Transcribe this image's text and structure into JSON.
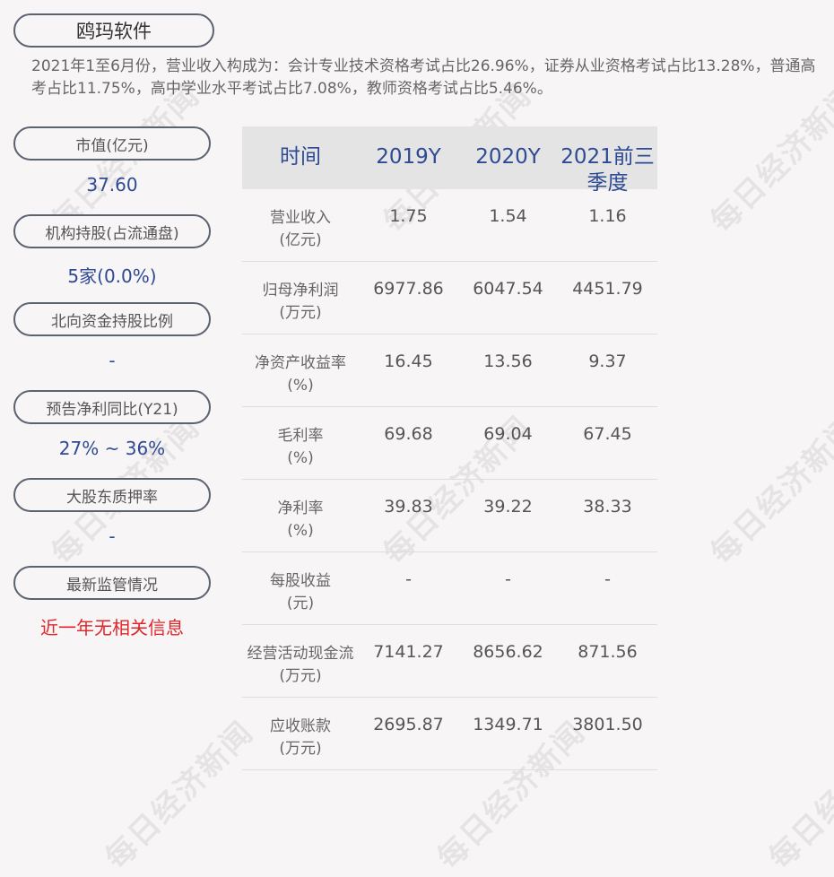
{
  "title": "鸥玛软件",
  "summary": "2021年1至6月份，营业收入构成为：会计专业技术资格考试占比26.96%，证券从业资格考试占比13.28%，普通高考占比11.75%，高中学业水平考试占比7.08%，教师资格考试占比5.46%。",
  "watermark": "每日经济新闻",
  "left_panel": [
    {
      "label": "市值(亿元)",
      "value": "37.60"
    },
    {
      "label": "机构持股(占流通盘)",
      "value": "5家(0.0%)"
    },
    {
      "label": "北向资金持股比例",
      "value": "-"
    },
    {
      "label": "预告净利同比(Y21)",
      "value": "27% ~ 36%"
    },
    {
      "label": "大股东质押率",
      "value": "-"
    },
    {
      "label": "最新监管情况",
      "value": "近一年无相关信息"
    }
  ],
  "table": {
    "headers": [
      "时间",
      "2019Y",
      "2020Y",
      "2021前三季度"
    ],
    "rows": [
      {
        "label": "营业收入",
        "unit": "(亿元)",
        "values": [
          "1.75",
          "1.54",
          "1.16"
        ]
      },
      {
        "label": "归母净利润",
        "unit": "(万元)",
        "values": [
          "6977.86",
          "6047.54",
          "4451.79"
        ]
      },
      {
        "label": "净资产收益率",
        "unit": "(%)",
        "values": [
          "16.45",
          "13.56",
          "9.37"
        ]
      },
      {
        "label": "毛利率",
        "unit": "(%)",
        "values": [
          "69.68",
          "69.04",
          "67.45"
        ]
      },
      {
        "label": "净利率",
        "unit": "(%)",
        "values": [
          "39.83",
          "39.22",
          "38.33"
        ]
      },
      {
        "label": "每股收益",
        "unit": "(元)",
        "values": [
          "-",
          "-",
          "-"
        ]
      },
      {
        "label": "经营活动现金流",
        "unit": "(万元)",
        "values": [
          "7141.27",
          "8656.62",
          "871.56"
        ]
      },
      {
        "label": "应收账款",
        "unit": "(万元)",
        "values": [
          "2695.87",
          "1349.71",
          "3801.50"
        ]
      }
    ]
  },
  "colors": {
    "accent": "#2e4a94",
    "alert": "#e0262b",
    "header_bg": "#e4e4e4"
  }
}
